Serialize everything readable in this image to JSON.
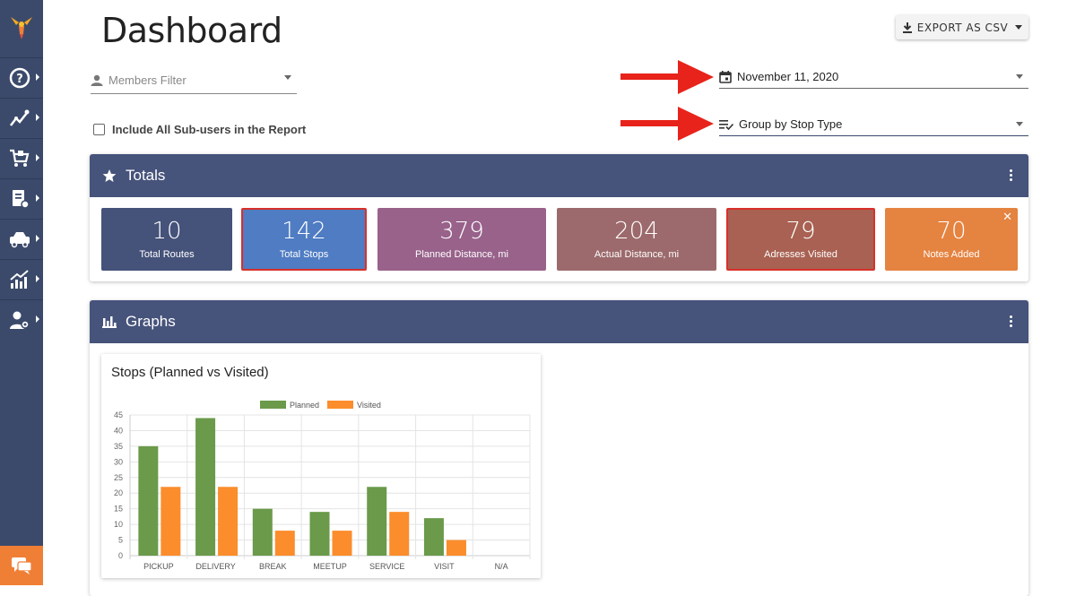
{
  "header": {
    "title": "Dashboard",
    "export_label": "EXPORT AS CSV"
  },
  "filters": {
    "members_placeholder": "Members Filter",
    "subusers_label": "Include All Sub-users in the Report",
    "date_value": "November 11, 2020",
    "group_value": "Group by Stop Type"
  },
  "sidebar": {
    "items": [
      {
        "icon": "help-icon"
      },
      {
        "icon": "routes-icon"
      },
      {
        "icon": "cart-icon"
      },
      {
        "icon": "documents-icon"
      },
      {
        "icon": "vehicles-icon"
      },
      {
        "icon": "analytics-icon"
      },
      {
        "icon": "user-settings-icon"
      }
    ],
    "chat_icon": "chat-icon"
  },
  "totals": {
    "title": "Totals",
    "cards": [
      {
        "value": "10",
        "label": "Total Routes",
        "color": "#45527a"
      },
      {
        "value": "142",
        "label": "Total Stops",
        "color": "#4f7cc3"
      },
      {
        "value": "379",
        "label": "Planned Distance, mi",
        "color": "#98628b"
      },
      {
        "value": "204",
        "label": "Actual Distance, mi",
        "color": "#9c6a6c"
      },
      {
        "value": "79",
        "label": "Adresses Visited",
        "color": "#a86152"
      },
      {
        "value": "70",
        "label": "Notes Added",
        "color": "#e58340"
      }
    ]
  },
  "graphs": {
    "title": "Graphs"
  },
  "chart_data": {
    "type": "bar",
    "title": "Stops (Planned vs Visited)",
    "categories": [
      "PICKUP",
      "DELIVERY",
      "BREAK",
      "MEETUP",
      "SERVICE",
      "VISIT",
      "N/A"
    ],
    "series": [
      {
        "name": "Planned",
        "values": [
          35,
          44,
          15,
          14,
          22,
          12,
          0
        ],
        "color": "#6a9a4a"
      },
      {
        "name": "Visited",
        "values": [
          22,
          22,
          8,
          8,
          14,
          5,
          0
        ],
        "color": "#fb8d2c"
      }
    ],
    "ylim": [
      0,
      45
    ],
    "yticks": [
      0,
      5,
      10,
      15,
      20,
      25,
      30,
      35,
      40,
      45
    ],
    "grid": true,
    "legend": "top"
  }
}
